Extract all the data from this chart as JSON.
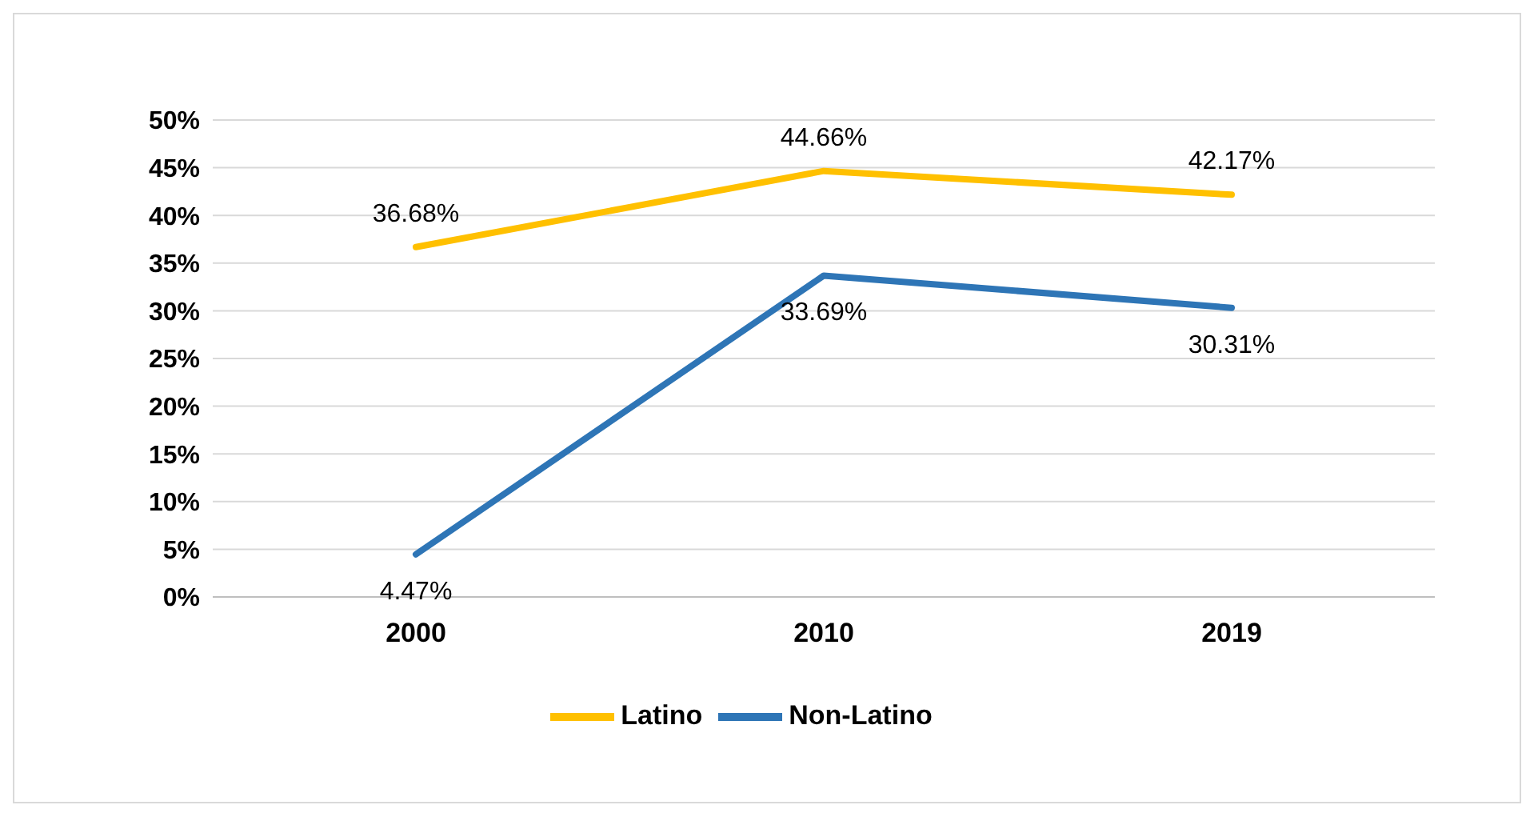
{
  "chart_data": {
    "type": "line",
    "categories": [
      "2000",
      "2010",
      "2019"
    ],
    "series": [
      {
        "name": "Latino",
        "color": "#ffc000",
        "values": [
          36.68,
          44.66,
          42.17
        ],
        "value_labels": [
          "36.68%",
          "44.66%",
          "42.17%"
        ]
      },
      {
        "name": "Non-Latino",
        "color": "#2e75b6",
        "values": [
          4.47,
          33.69,
          30.31
        ],
        "value_labels": [
          "4.47%",
          "33.69%",
          "30.31%"
        ]
      }
    ],
    "ylim": [
      0,
      50
    ],
    "yticks": [
      {
        "value": 0,
        "label": "0%"
      },
      {
        "value": 5,
        "label": "5%"
      },
      {
        "value": 10,
        "label": "10%"
      },
      {
        "value": 15,
        "label": "15%"
      },
      {
        "value": 20,
        "label": "20%"
      },
      {
        "value": 25,
        "label": "25%"
      },
      {
        "value": 30,
        "label": "30%"
      },
      {
        "value": 35,
        "label": "35%"
      },
      {
        "value": 40,
        "label": "40%"
      },
      {
        "value": 45,
        "label": "45%"
      },
      {
        "value": 50,
        "label": "50%"
      }
    ],
    "grid": "y",
    "legend": "bottom",
    "marker": "none",
    "line_style": "solid"
  }
}
